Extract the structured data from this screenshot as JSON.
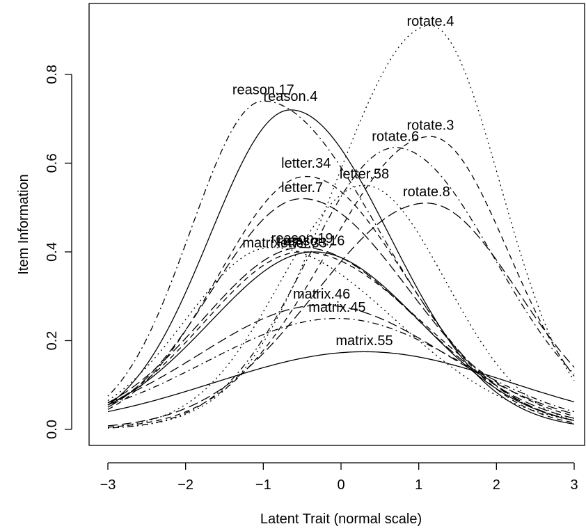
{
  "chart_data": {
    "type": "line",
    "title": "",
    "xlabel": "Latent Trait (normal scale)",
    "ylabel": "Item Information",
    "xlim": [
      -3,
      3
    ],
    "ylim": [
      0,
      0.93
    ],
    "x_ticks": [
      -3,
      -2,
      -1,
      0,
      1,
      2,
      3
    ],
    "x_tick_labels": [
      "−3",
      "−2",
      "−1",
      "0",
      "1",
      "2",
      "3"
    ],
    "y_ticks": [
      0.0,
      0.2,
      0.4,
      0.6,
      0.8
    ],
    "y_tick_labels": [
      "0.0",
      "0.2",
      "0.4",
      "0.6",
      "0.8"
    ],
    "grid": false,
    "legend": "none",
    "series": [
      {
        "name": "reason.4",
        "peak_x": -0.65,
        "peak_y": 0.72,
        "end_left": 0.055,
        "end_right": 0.012,
        "line_style": "solid"
      },
      {
        "name": "reason.16",
        "peak_x": -0.35,
        "peak_y": 0.4,
        "end_left": 0.055,
        "end_right": 0.02,
        "line_style": "solid"
      },
      {
        "name": "reason.17",
        "peak_x": -1.0,
        "peak_y": 0.74,
        "end_left": 0.075,
        "end_right": 0.02,
        "line_style": "dotdash"
      },
      {
        "name": "reason.19",
        "peak_x": -0.5,
        "peak_y": 0.41,
        "end_left": 0.06,
        "end_right": 0.025,
        "line_style": "longdash"
      },
      {
        "name": "letter.7",
        "peak_x": -0.5,
        "peak_y": 0.52,
        "end_left": 0.05,
        "end_right": 0.02,
        "line_style": "longdash"
      },
      {
        "name": "letter.33",
        "peak_x": -0.5,
        "peak_y": 0.4,
        "end_left": 0.055,
        "end_right": 0.03,
        "line_style": "dashed"
      },
      {
        "name": "letter.34",
        "peak_x": -0.45,
        "peak_y": 0.57,
        "end_left": 0.045,
        "end_right": 0.015,
        "line_style": "dashed"
      },
      {
        "name": "letter.58",
        "peak_x": 0.3,
        "peak_y": 0.55,
        "end_left": 0.005,
        "end_right": 0.02,
        "line_style": "dotted"
      },
      {
        "name": "matrix.45",
        "peak_x": -0.05,
        "peak_y": 0.25,
        "end_left": 0.055,
        "end_right": 0.04,
        "line_style": "dotdash"
      },
      {
        "name": "matrix.46",
        "peak_x": -0.25,
        "peak_y": 0.28,
        "end_left": 0.06,
        "end_right": 0.035,
        "line_style": "longdash"
      },
      {
        "name": "matrix.47",
        "peak_x": -0.9,
        "peak_y": 0.41,
        "end_left": 0.065,
        "end_right": 0.02,
        "line_style": "dotted"
      },
      {
        "name": "matrix.55",
        "peak_x": 0.3,
        "peak_y": 0.175,
        "end_left": 0.04,
        "end_right": 0.062,
        "line_style": "solid"
      },
      {
        "name": "rotate.3",
        "peak_x": 1.15,
        "peak_y": 0.66,
        "end_left": 0.005,
        "end_right": 0.12,
        "line_style": "dashed"
      },
      {
        "name": "rotate.4",
        "peak_x": 1.15,
        "peak_y": 0.91,
        "end_left": 0.003,
        "end_right": 0.11,
        "line_style": "dotted"
      },
      {
        "name": "rotate.6",
        "peak_x": 0.7,
        "peak_y": 0.635,
        "end_left": 0.003,
        "end_right": 0.125,
        "line_style": "dotdash"
      },
      {
        "name": "rotate.8",
        "peak_x": 1.1,
        "peak_y": 0.51,
        "end_left": 0.008,
        "end_right": 0.14,
        "line_style": "longdash"
      }
    ],
    "labels": [
      {
        "text": "rotate.4",
        "x": 1.15,
        "y": 0.91
      },
      {
        "text": "reason.17",
        "x": -1.0,
        "y": 0.755
      },
      {
        "text": "reason.4",
        "x": -0.65,
        "y": 0.74
      },
      {
        "text": "rotate.3",
        "x": 1.15,
        "y": 0.675
      },
      {
        "text": "rotate.6",
        "x": 0.7,
        "y": 0.65
      },
      {
        "text": "letter.34",
        "x": -0.45,
        "y": 0.59
      },
      {
        "text": "letter.58",
        "x": 0.3,
        "y": 0.565
      },
      {
        "text": "letter.7",
        "x": -0.5,
        "y": 0.535
      },
      {
        "text": "rotate.8",
        "x": 1.1,
        "y": 0.525
      },
      {
        "text": "reason.19",
        "x": -0.5,
        "y": 0.42
      },
      {
        "text": "reason.16",
        "x": -0.35,
        "y": 0.415
      },
      {
        "text": "matrix.47",
        "x": -0.9,
        "y": 0.41
      },
      {
        "text": "letter.33",
        "x": -0.5,
        "y": 0.41
      },
      {
        "text": "matrix.46",
        "x": -0.25,
        "y": 0.295
      },
      {
        "text": "matrix.45",
        "x": -0.05,
        "y": 0.265
      },
      {
        "text": "matrix.55",
        "x": 0.3,
        "y": 0.19
      }
    ]
  }
}
